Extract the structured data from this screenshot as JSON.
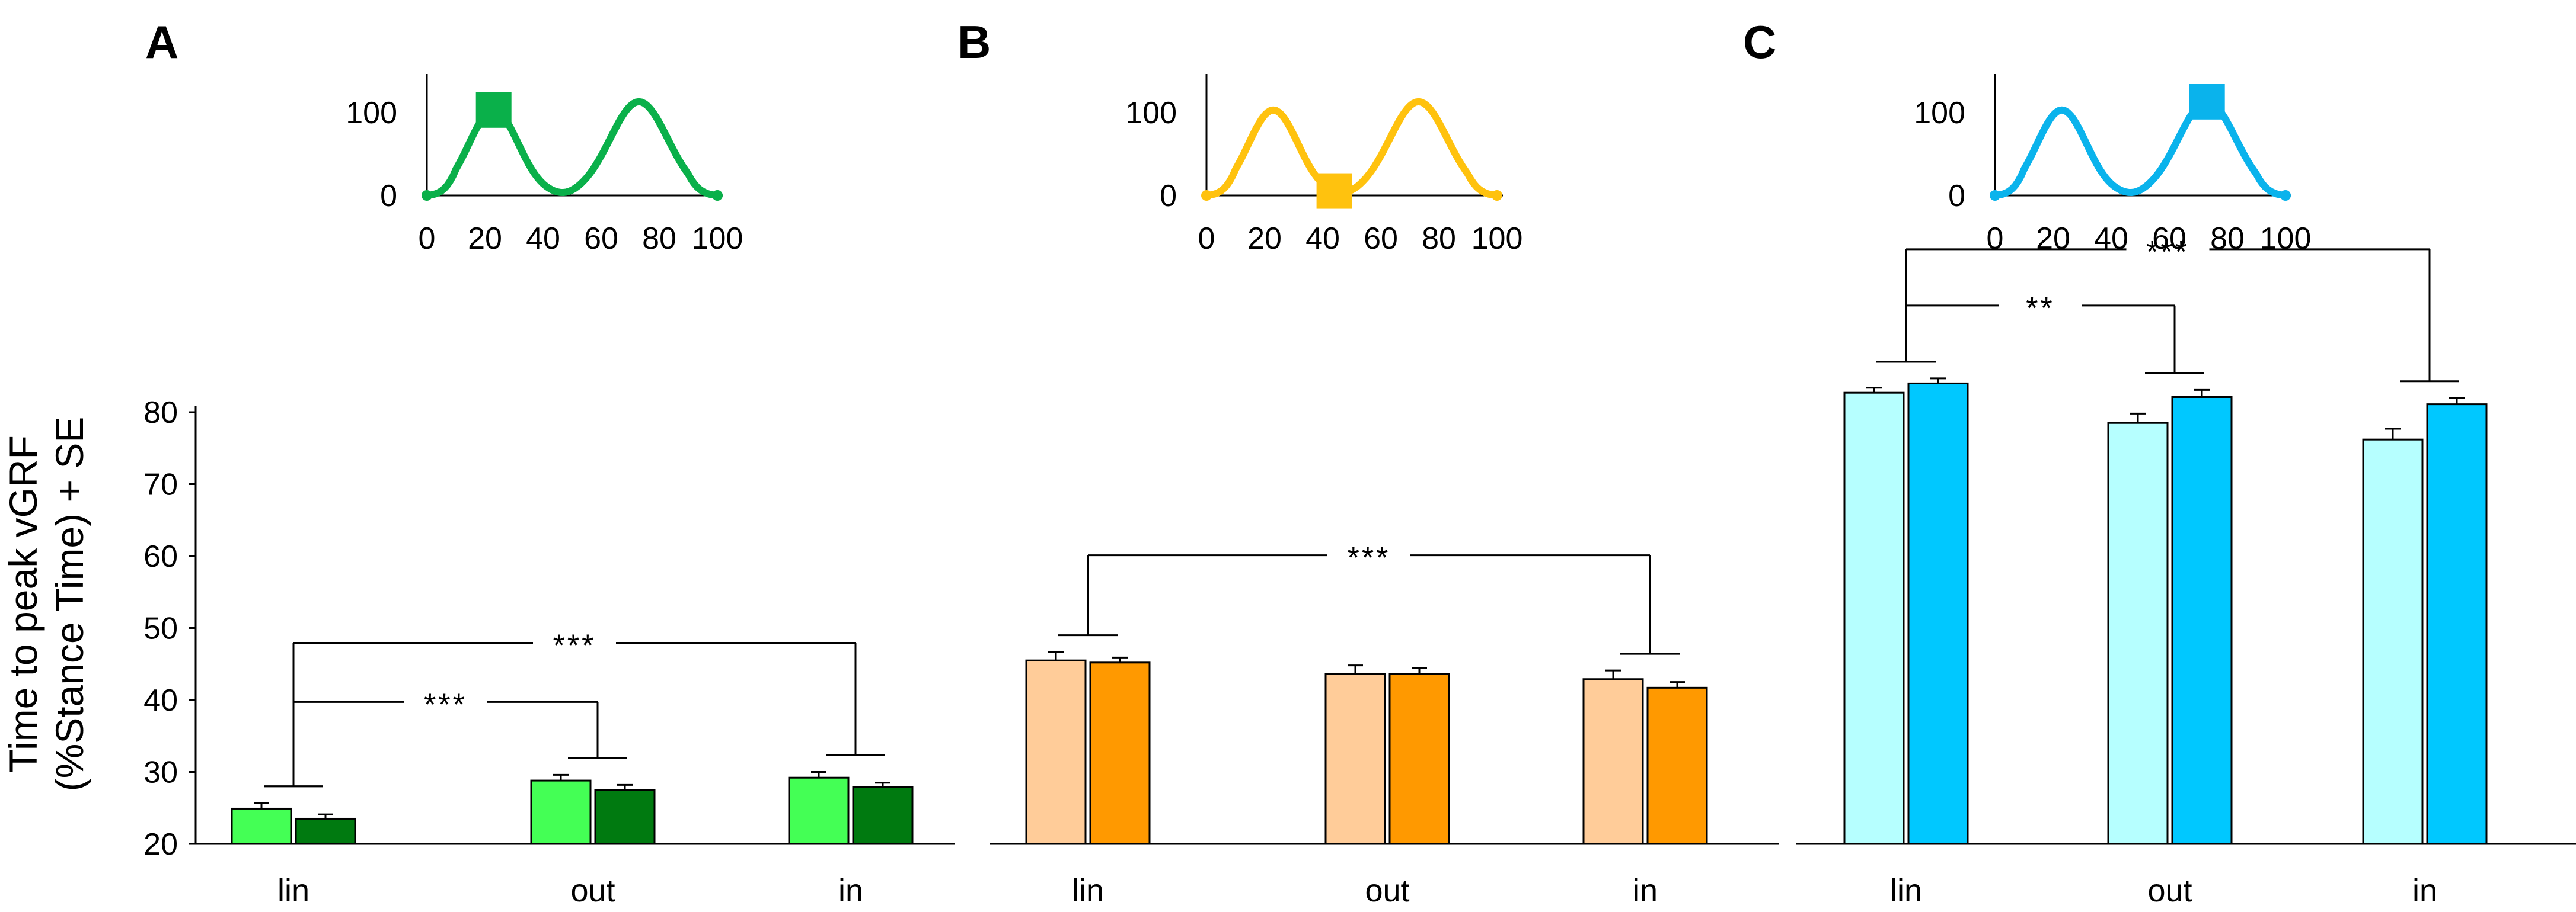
{
  "chart_data": {
    "type": "bar",
    "ylabel_line1": "Time to peak vGRF",
    "ylabel_line2": "(%Stance Time) + SE",
    "ylim": [
      20,
      80
    ],
    "yticks": [
      "20",
      "30",
      "40",
      "50",
      "60",
      "70",
      "80"
    ],
    "categories": [
      "lin",
      "out",
      "in"
    ],
    "panels": [
      {
        "label": "A",
        "colors": {
          "light": "#44ff55",
          "dark": "#007a10",
          "curve": "#0ab04a"
        },
        "series": [
          {
            "name": "light",
            "values": [
              24.9,
              28.8,
              29.2
            ],
            "se": [
              0.8,
              0.8,
              0.8
            ]
          },
          {
            "name": "dark",
            "values": [
              23.5,
              27.5,
              27.9
            ],
            "se": [
              0.6,
              0.7,
              0.6
            ]
          }
        ],
        "significance": [
          {
            "text": "***",
            "from": "lin",
            "to": "out"
          },
          {
            "text": "***",
            "from": "lin",
            "to": "in"
          }
        ],
        "inset": {
          "marker_x": 23,
          "xticks": [
            "0",
            "20",
            "40",
            "60",
            "80",
            "100"
          ],
          "yticks": [
            "0",
            "100"
          ]
        }
      },
      {
        "label": "B",
        "colors": {
          "light": "#ffcc99",
          "dark": "#ff9900",
          "curve": "#ffc20e"
        },
        "series": [
          {
            "name": "light",
            "values": [
              45.5,
              43.6,
              42.9
            ],
            "se": [
              1.2,
              1.2,
              1.2
            ]
          },
          {
            "name": "dark",
            "values": [
              45.2,
              43.6,
              41.7
            ],
            "se": [
              0.7,
              0.8,
              0.8
            ]
          }
        ],
        "significance": [
          {
            "text": "***",
            "from": "lin",
            "to": "in"
          }
        ],
        "inset": {
          "marker_x": 44,
          "xticks": [
            "0",
            "20",
            "40",
            "60",
            "80",
            "100"
          ],
          "yticks": [
            "0",
            "100"
          ]
        }
      },
      {
        "label": "C",
        "colors": {
          "light": "#b6ffff",
          "dark": "#00c8ff",
          "curve": "#0ab3ec"
        },
        "series": [
          {
            "name": "light",
            "values": [
              82.7,
              78.5,
              76.2
            ],
            "se": [
              0.7,
              1.3,
              1.5
            ]
          },
          {
            "name": "dark",
            "values": [
              84.0,
              82.1,
              81.1
            ],
            "se": [
              0.7,
              1.0,
              0.9
            ]
          }
        ],
        "significance": [
          {
            "text": "**",
            "from": "lin",
            "to": "out"
          },
          {
            "text": "***",
            "from": "lin",
            "to": "in"
          }
        ],
        "inset": {
          "marker_x": 73,
          "xticks": [
            "0",
            "20",
            "40",
            "60",
            "80",
            "100"
          ],
          "yticks": [
            "0",
            "100"
          ]
        }
      }
    ]
  }
}
